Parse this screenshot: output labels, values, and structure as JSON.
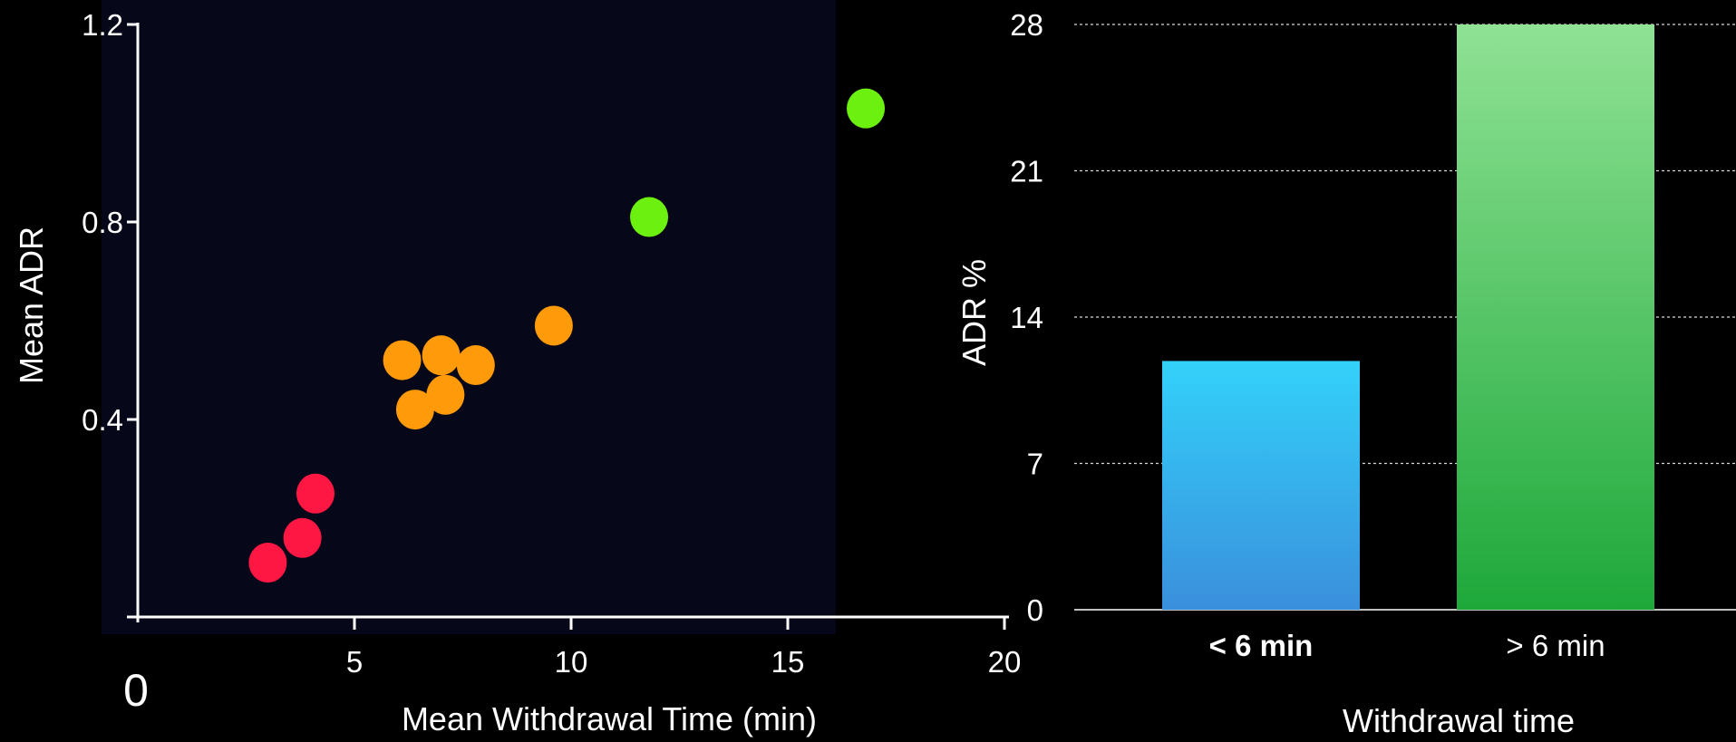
{
  "chart_data": [
    {
      "type": "scatter",
      "title": "",
      "xlabel": "Mean Withdrawal Time (min)",
      "ylabel": "Mean ADR",
      "xlim": [
        0,
        20
      ],
      "ylim": [
        0,
        1.2
      ],
      "x_ticks": [
        "5",
        "10",
        "15",
        "20"
      ],
      "x_origin_label": "0",
      "y_ticks": [
        "0.4",
        "0.8",
        "1.2"
      ],
      "grid": false,
      "background": "#07071a",
      "series": [
        {
          "color": "#ff1744",
          "points": [
            {
              "x": 3.0,
              "y": 0.11
            },
            {
              "x": 3.8,
              "y": 0.16
            },
            {
              "x": 4.1,
              "y": 0.25
            }
          ]
        },
        {
          "color": "#ff9a0a",
          "points": [
            {
              "x": 6.1,
              "y": 0.52
            },
            {
              "x": 6.4,
              "y": 0.42
            },
            {
              "x": 7.0,
              "y": 0.53
            },
            {
              "x": 7.1,
              "y": 0.45
            },
            {
              "x": 7.8,
              "y": 0.51
            },
            {
              "x": 9.6,
              "y": 0.59
            }
          ]
        },
        {
          "color": "#6cf00f",
          "points": [
            {
              "x": 11.8,
              "y": 0.81
            },
            {
              "x": 16.8,
              "y": 1.03
            }
          ]
        }
      ]
    },
    {
      "type": "bar",
      "title": "",
      "xlabel": "Withdrawal time",
      "ylabel": "ADR %",
      "ylim": [
        0,
        28
      ],
      "y_ticks": [
        "0",
        "7",
        "14",
        "21",
        "28"
      ],
      "grid": true,
      "categories": [
        "< 6 min",
        "> 6 min"
      ],
      "values": [
        11.9,
        28.0
      ],
      "colors": [
        {
          "top": "#33d1fa",
          "bottom": "#3a8fdc"
        },
        {
          "top": "#8fe294",
          "bottom": "#1ea83a"
        }
      ]
    }
  ]
}
